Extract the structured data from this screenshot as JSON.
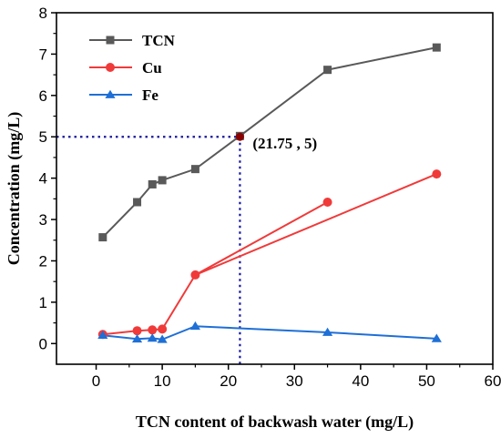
{
  "chart_data": {
    "type": "line",
    "title": "",
    "xlabel": "TCN content of backwash water (mg/L)",
    "ylabel": "Concentration (mg/L)",
    "xlim": [
      -6,
      60
    ],
    "ylim": [
      -0.5,
      8
    ],
    "xticks": [
      "0",
      "10",
      "20",
      "30",
      "40",
      "50",
      "60"
    ],
    "yticks": [
      "0",
      "1",
      "2",
      "3",
      "4",
      "5",
      "6",
      "7",
      "8"
    ],
    "grid": false,
    "legend_position": "top-left",
    "series": [
      {
        "name": "TCN",
        "color": "#595959",
        "marker": "square",
        "x": [
          1,
          6.2,
          8.5,
          10,
          15,
          21.75,
          35,
          51.5
        ],
        "y": [
          2.57,
          3.42,
          3.85,
          3.95,
          4.22,
          5.02,
          6.62,
          7.16
        ]
      },
      {
        "name": "Cu",
        "color": "#f03a3a",
        "marker": "circle",
        "x": [
          1,
          6.2,
          8.5,
          10,
          15,
          51.5
        ],
        "y": [
          0.22,
          0.31,
          0.33,
          0.35,
          1.66,
          4.1
        ],
        "extra_segment": {
          "x": [
            15,
            35
          ],
          "y": [
            1.66,
            3.42
          ]
        }
      },
      {
        "name": "Fe",
        "color": "#1e6fd6",
        "marker": "triangle",
        "x": [
          1,
          6.2,
          8.5,
          10,
          15,
          35,
          51.5
        ],
        "y": [
          0.2,
          0.11,
          0.13,
          0.1,
          0.42,
          0.27,
          0.12
        ]
      }
    ],
    "annotation": {
      "point": [
        21.75,
        5
      ],
      "label": "(21.75 , 5)",
      "color": "#1a1a9c"
    }
  }
}
